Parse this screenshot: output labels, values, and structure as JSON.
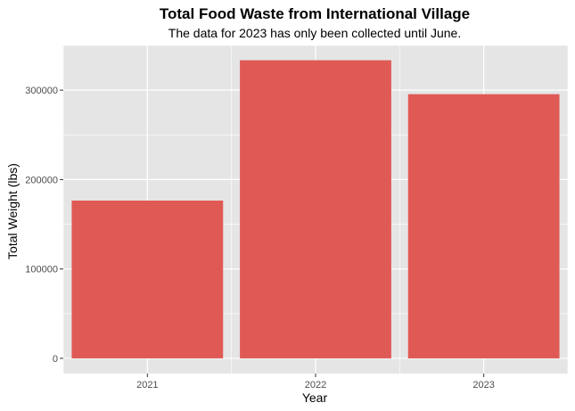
{
  "chart_data": {
    "type": "bar",
    "title": "Total Food Waste from International Village",
    "subtitle": "The data for 2023 has only been collected until June.",
    "xlabel": "Year",
    "ylabel": "Total Weight (lbs)",
    "categories": [
      "2021",
      "2022",
      "2023"
    ],
    "values": [
      176500,
      333500,
      295500
    ],
    "ylim": [
      -17000,
      350000
    ],
    "yticks": [
      0,
      100000,
      200000,
      300000
    ],
    "ytick_labels": [
      "0",
      "100000",
      "200000",
      "300000"
    ],
    "bar_color": "#e05a55",
    "panel_background": "#e5e5e5",
    "grid": true,
    "legend": "none"
  }
}
